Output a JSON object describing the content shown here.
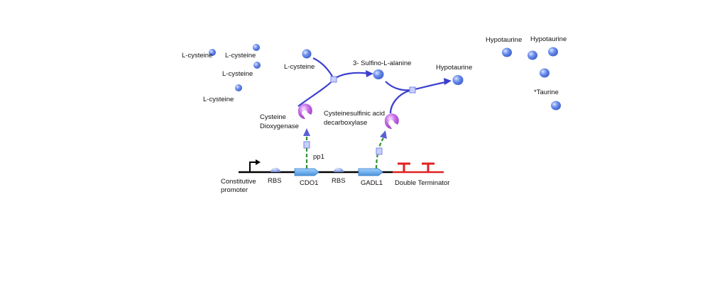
{
  "labels": {
    "lcys_1": "L-cysteine",
    "lcys_2": "L-cysteine",
    "lcys_3": "L-cysteine",
    "lcys_4": "L-cysteine",
    "lcys_5": "L-cysteine",
    "sulfino": "3- Sulfino-L-alanine",
    "hypo_path": "Hypotaurine",
    "hypo_1": "Hypotaurine",
    "hypo_2": "Hypotaurine",
    "taurine": "*Taurine",
    "cdo_enzyme_line1": "Cysteine",
    "cdo_enzyme_line2": "Dioxygenase",
    "gadl_enzyme_line1": "Cysteinesulfinic acid",
    "gadl_enzyme_line2": "decarboxylase",
    "promoter_line1": "Constitutive",
    "promoter_line2": "promoter",
    "rbs_1": "RBS",
    "cdo1": "CDO1",
    "rbs_2": "RBS",
    "gadl1": "GADL1",
    "terminator": "Double Terminator",
    "pp1": "pp1"
  },
  "colors": {
    "molecule": "#5b7fe0",
    "molecule_light": "#c7d6ff",
    "pathway_arrow": "#3b3fcf",
    "expression_arrow": "#2f8f2f",
    "enzyme": "#b14fd8",
    "enzyme_light": "#f0c9ff",
    "gene": "#5aa7e8",
    "terminator": "#e02020",
    "dna": "#000000"
  },
  "icons": [
    "molecule-icon",
    "enzyme-icon",
    "promoter-icon",
    "rbs-icon",
    "cds-icon",
    "terminator-icon"
  ]
}
